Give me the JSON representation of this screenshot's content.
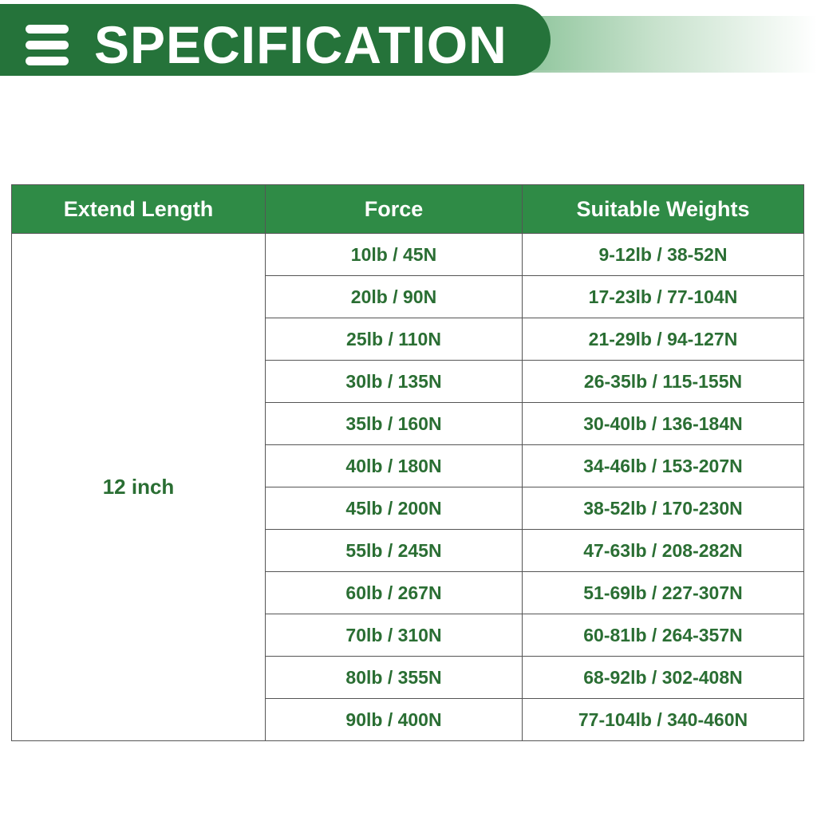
{
  "header": {
    "title": "SPECIFICATION",
    "icon": "menu-icon",
    "color": "#25733a"
  },
  "table": {
    "headers": [
      "Extend Length",
      "Force",
      "Suitable Weights"
    ],
    "extend_length": "12 inch",
    "rows": [
      {
        "force": "10lb / 45N",
        "weights": "9-12lb / 38-52N"
      },
      {
        "force": "20lb / 90N",
        "weights": "17-23lb / 77-104N"
      },
      {
        "force": "25lb / 110N",
        "weights": "21-29lb / 94-127N"
      },
      {
        "force": "30lb / 135N",
        "weights": "26-35lb / 115-155N"
      },
      {
        "force": "35lb / 160N",
        "weights": "30-40lb / 136-184N"
      },
      {
        "force": "40lb / 180N",
        "weights": "34-46lb / 153-207N"
      },
      {
        "force": "45lb / 200N",
        "weights": "38-52lb / 170-230N"
      },
      {
        "force": "55lb / 245N",
        "weights": "47-63lb / 208-282N"
      },
      {
        "force": "60lb / 267N",
        "weights": "51-69lb / 227-307N"
      },
      {
        "force": "70lb / 310N",
        "weights": "60-81lb / 264-357N"
      },
      {
        "force": "80lb / 355N",
        "weights": "68-92lb / 302-408N"
      },
      {
        "force": "90lb / 400N",
        "weights": "77-104lb / 340-460N"
      }
    ]
  }
}
